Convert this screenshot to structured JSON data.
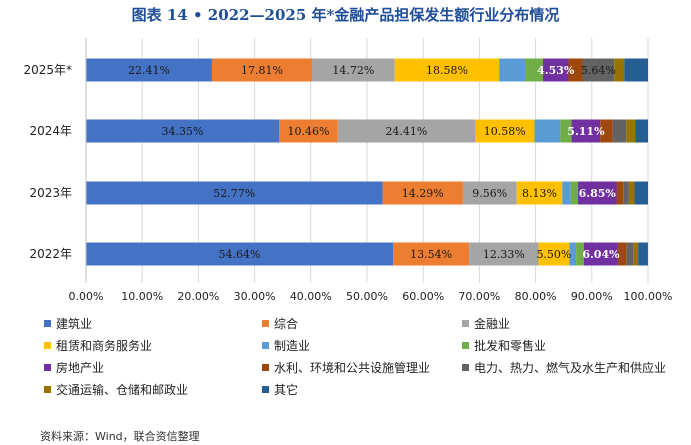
{
  "title": "图表 14 • 2022—2025 年*金融产品担保发生额行业分布情况",
  "source": "资料来源：Wind，联合资信整理",
  "chart_data": {
    "type": "bar",
    "orientation": "horizontal",
    "stacked": true,
    "categories": [
      "2025年*",
      "2024年",
      "2023年",
      "2022年"
    ],
    "xlim": [
      0,
      100
    ],
    "x_ticks": [
      "0.00%",
      "10.00%",
      "20.00%",
      "30.00%",
      "40.00%",
      "50.00%",
      "60.00%",
      "70.00%",
      "80.00%",
      "90.00%",
      "100.00%"
    ],
    "legend_position": "bottom",
    "series": [
      {
        "name": "建筑业",
        "color": "#4472c4",
        "values": [
          22.41,
          34.35,
          52.77,
          54.64
        ],
        "labels": [
          "22.41%",
          "34.35%",
          "52.77%",
          "54.64%"
        ]
      },
      {
        "name": "综合",
        "color": "#ed7d31",
        "values": [
          17.81,
          10.46,
          14.29,
          13.54
        ],
        "labels": [
          "17.81%",
          "10.46%",
          "14.29%",
          "13.54%"
        ]
      },
      {
        "name": "金融业",
        "color": "#a5a5a5",
        "values": [
          14.72,
          24.41,
          9.56,
          12.33
        ],
        "labels": [
          "14.72%",
          "24.41%",
          "9.56%",
          "12.33%"
        ]
      },
      {
        "name": "租赁和商务服务业",
        "color": "#ffc000",
        "values": [
          18.58,
          10.58,
          8.13,
          5.5
        ],
        "labels": [
          "18.58%",
          "10.58%",
          "8.13%",
          "5.50%"
        ]
      },
      {
        "name": "制造业",
        "color": "#5b9bd5",
        "values": [
          4.6,
          4.6,
          1.5,
          1.2
        ],
        "labels": [
          "",
          "",
          "",
          ""
        ]
      },
      {
        "name": "批发和零售业",
        "color": "#70ad47",
        "values": [
          3.2,
          2.0,
          1.3,
          1.4
        ],
        "labels": [
          "",
          "",
          "",
          ""
        ]
      },
      {
        "name": "房地产业",
        "color": "#7030a0",
        "values": [
          4.53,
          5.11,
          6.85,
          6.04
        ],
        "labels": [
          "4.53%",
          "5.11%",
          "6.85%",
          "6.04%"
        ]
      },
      {
        "name": "水利、环境和公共设施管理业",
        "color": "#9e480e",
        "values": [
          2.5,
          2.2,
          1.2,
          1.5
        ],
        "labels": [
          "",
          "",
          "",
          ""
        ]
      },
      {
        "name": "电力、热力、燃气及水生产和供应业",
        "color": "#636363",
        "values": [
          5.64,
          2.4,
          1.0,
          1.2
        ],
        "labels": [
          "5.64%",
          "",
          "",
          ""
        ]
      },
      {
        "name": "交通运输、仓储和邮政业",
        "color": "#997300",
        "values": [
          1.8,
          1.6,
          1.0,
          0.9
        ],
        "labels": [
          "",
          "",
          "",
          ""
        ]
      },
      {
        "name": "其它",
        "color": "#255e91",
        "values": [
          4.21,
          2.29,
          2.4,
          1.74
        ],
        "labels": [
          "",
          "",
          "",
          ""
        ]
      }
    ]
  }
}
